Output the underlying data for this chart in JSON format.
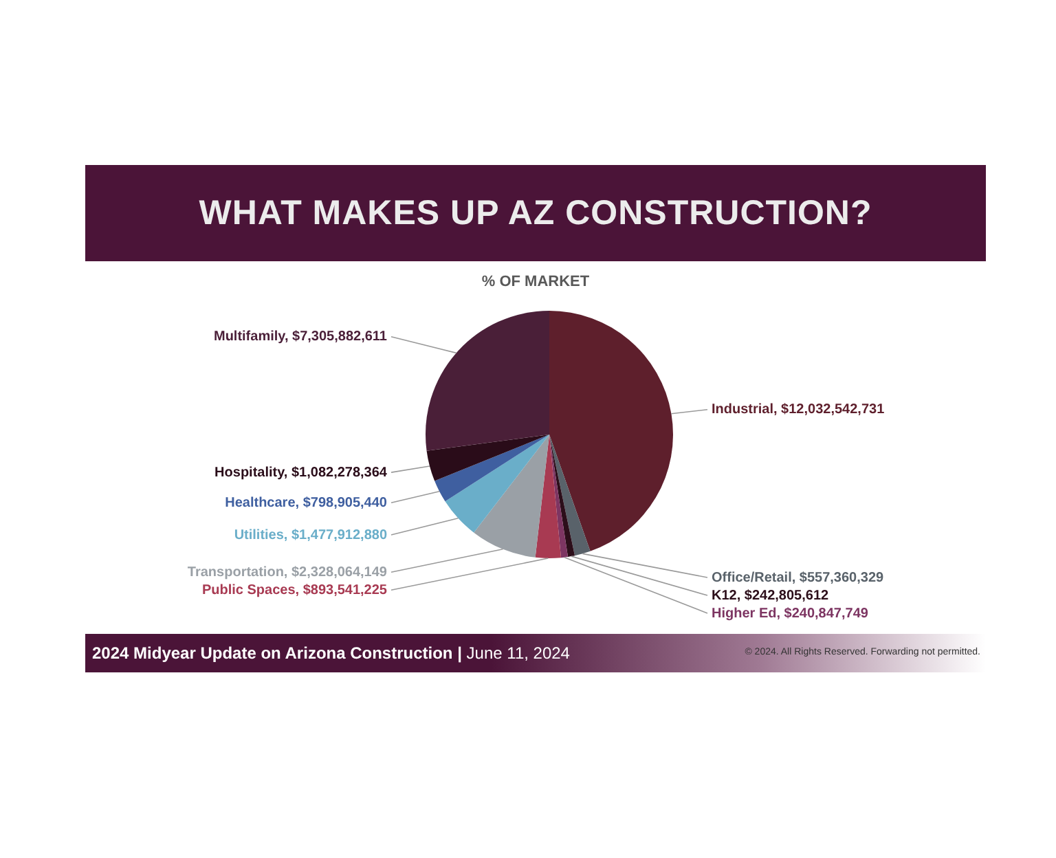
{
  "chart_data": {
    "type": "pie",
    "title": "WHAT MAKES UP AZ CONSTRUCTION?",
    "subtitle": "% OF MARKET",
    "categories": [
      "Industrial",
      "Office/Retail",
      "K12",
      "Higher Ed",
      "Public Spaces",
      "Transportation",
      "Utilities",
      "Healthcare",
      "Hospitality",
      "Multifamily"
    ],
    "values": [
      12032542731,
      557360329,
      242805612,
      240847749,
      893541225,
      2328064149,
      1477912880,
      798905440,
      1082278364,
      7305882611
    ],
    "value_labels": [
      "$12,032,542,731",
      "$557,360,329",
      "$242,805,612",
      "$240,847,749",
      "$893,541,225",
      "$2,328,064,149",
      "$1,477,912,880",
      "$798,905,440",
      "$1,082,278,364",
      "$7,305,882,611"
    ],
    "colors": [
      "#5e1f2c",
      "#59626a",
      "#2c0e1a",
      "#7d3562",
      "#a83a52",
      "#9aa0a6",
      "#6aaec9",
      "#3f5fa0",
      "#2a0c19",
      "#4a1f38"
    ],
    "annotations": [
      "2024 Midyear Update on Arizona Construction | June 11, 2024",
      "© 2024. All Rights Reserved. Forwarding not permitted."
    ]
  }
}
